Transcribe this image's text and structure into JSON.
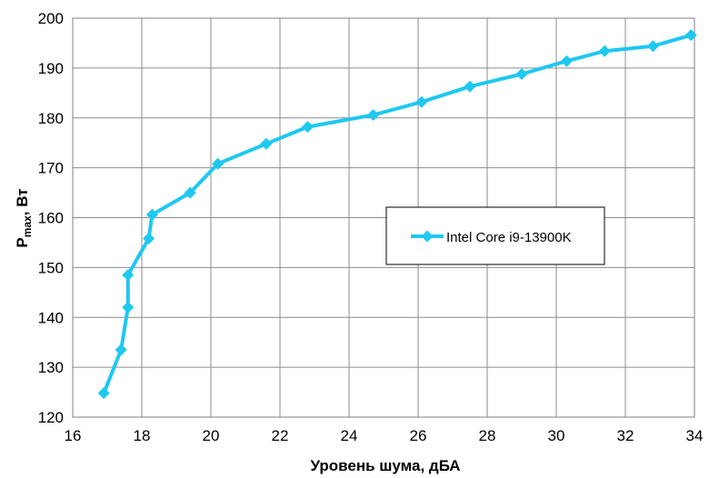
{
  "chart_data": {
    "type": "line",
    "xlabel": "Уровень шума, дБА",
    "ylabel": {
      "main": "P",
      "sub": "max",
      "rest": ", Вт"
    },
    "xlim": [
      16,
      34
    ],
    "ylim": [
      120,
      200
    ],
    "x_ticks": [
      16,
      18,
      20,
      22,
      24,
      26,
      28,
      30,
      32,
      34
    ],
    "y_ticks": [
      120,
      130,
      140,
      150,
      160,
      170,
      180,
      190,
      200
    ],
    "grid": true,
    "legend_position": "right-center",
    "series": [
      {
        "name": "Intel Core i9-13900K",
        "color": "#1ec8f0",
        "marker": "diamond",
        "x": [
          16.9,
          17.4,
          17.6,
          17.6,
          18.2,
          18.3,
          19.4,
          20.2,
          21.6,
          22.8,
          24.7,
          26.1,
          27.5,
          29.0,
          30.3,
          31.4,
          32.8,
          33.9
        ],
        "y": [
          124.8,
          133.5,
          142.0,
          148.5,
          155.8,
          160.6,
          165.0,
          170.8,
          174.8,
          178.2,
          180.6,
          183.2,
          186.3,
          188.8,
          191.4,
          193.4,
          194.4,
          196.6
        ]
      }
    ]
  }
}
